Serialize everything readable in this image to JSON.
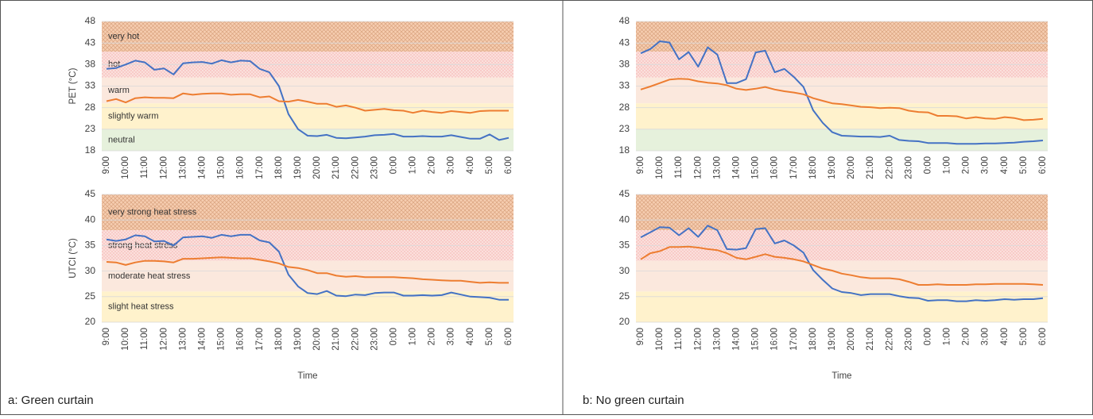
{
  "captions": [
    "a: Green curtain",
    "b: No green curtain"
  ],
  "chart_data": [
    {
      "type": "line",
      "y_label": "PET (°C)",
      "ylim": [
        18,
        48
      ],
      "yticks": [
        18,
        23,
        28,
        33,
        38,
        43,
        48
      ],
      "grid": true,
      "categories": [
        "9:00",
        null,
        "10:00",
        null,
        "11:00",
        null,
        "12:00",
        null,
        "13:00",
        null,
        "14:00",
        null,
        "15:00",
        null,
        "16:00",
        null,
        "17:00",
        null,
        "18:00",
        null,
        "19:00",
        null,
        "20:00",
        null,
        "21:00",
        null,
        "22:00",
        null,
        "23:00",
        null,
        "0:00",
        null,
        "1:00",
        null,
        "2:00",
        null,
        "3:00",
        null,
        "4:00",
        null,
        "5:00",
        null,
        "6:00"
      ],
      "bands": [
        {
          "label": "very hot",
          "from": 41,
          "to": 48,
          "color": "#f6cdb0",
          "pattern": "hatch"
        },
        {
          "label": "hot",
          "from": 35,
          "to": 41,
          "color": "#fbe0dc",
          "pattern": "dots"
        },
        {
          "label": "warm",
          "from": 29,
          "to": 35,
          "color": "#fbe8dd"
        },
        {
          "label": "slightly warm",
          "from": 23,
          "to": 29,
          "color": "#fff2cc"
        },
        {
          "label": "neutral",
          "from": 18,
          "to": 23,
          "color": "#e6f1dc"
        }
      ],
      "series": [
        {
          "color": "#4472c4",
          "values": [
            37,
            37.2,
            38,
            38.9,
            38.5,
            36.8,
            37.1,
            35.7,
            38.3,
            38.5,
            38.6,
            38.2,
            39.0,
            38.5,
            38.9,
            38.8,
            37.0,
            36.2,
            33.0,
            26.5,
            23.0,
            21.5,
            21.4,
            21.7,
            21.0,
            20.9,
            21.1,
            21.3,
            21.6,
            21.7,
            21.9,
            21.3,
            21.3,
            21.4,
            21.3,
            21.3,
            21.6,
            21.2,
            20.8,
            20.8,
            21.8,
            20.5,
            21.0
          ]
        },
        {
          "color": "#ed7d31",
          "values": [
            29.5,
            30.0,
            29.2,
            30.2,
            30.4,
            30.3,
            30.3,
            30.2,
            31.3,
            31.0,
            31.2,
            31.3,
            31.3,
            31.0,
            31.1,
            31.1,
            30.4,
            30.6,
            29.5,
            29.4,
            29.8,
            29.4,
            28.9,
            28.9,
            28.2,
            28.5,
            28.0,
            27.3,
            27.5,
            27.7,
            27.4,
            27.3,
            26.8,
            27.3,
            27.0,
            26.8,
            27.2,
            27.0,
            26.8,
            27.2,
            27.3,
            27.3,
            27.3
          ]
        }
      ]
    },
    {
      "type": "line",
      "y_label": "UTCI (°C)",
      "x_label": "Time",
      "ylim": [
        20,
        45
      ],
      "yticks": [
        20,
        25,
        30,
        35,
        40,
        45
      ],
      "grid": true,
      "categories": [
        "9:00",
        null,
        "10:00",
        null,
        "11:00",
        null,
        "12:00",
        null,
        "13:00",
        null,
        "14:00",
        null,
        "15:00",
        null,
        "16:00",
        null,
        "17:00",
        null,
        "18:00",
        null,
        "19:00",
        null,
        "20:00",
        null,
        "21:00",
        null,
        "22:00",
        null,
        "23:00",
        null,
        "0:00",
        null,
        "1:00",
        null,
        "2:00",
        null,
        "3:00",
        null,
        "4:00",
        null,
        "5:00",
        null,
        "6:00"
      ],
      "bands": [
        {
          "label": "very strong heat stress",
          "from": 38,
          "to": 45,
          "color": "#f6cdb0",
          "pattern": "hatch"
        },
        {
          "label": "strong heat stress",
          "from": 32,
          "to": 38,
          "color": "#fbe0dc",
          "pattern": "dots"
        },
        {
          "label": "moderate heat stress",
          "from": 26,
          "to": 32,
          "color": "#fbe8dd"
        },
        {
          "label": "slight heat stress",
          "from": 20,
          "to": 26,
          "color": "#fff2cc"
        }
      ],
      "series": [
        {
          "color": "#4472c4",
          "values": [
            36.2,
            35.9,
            36.2,
            37.0,
            36.8,
            35.8,
            35.9,
            35.0,
            36.6,
            36.7,
            36.8,
            36.5,
            37.1,
            36.8,
            37.1,
            37.1,
            36.0,
            35.6,
            33.8,
            29.3,
            27.0,
            25.7,
            25.5,
            26.1,
            25.2,
            25.1,
            25.4,
            25.3,
            25.7,
            25.8,
            25.8,
            25.2,
            25.2,
            25.3,
            25.2,
            25.3,
            25.8,
            25.4,
            25.0,
            24.9,
            24.8,
            24.4,
            24.4
          ]
        },
        {
          "color": "#ed7d31",
          "values": [
            31.8,
            31.7,
            31.2,
            31.7,
            32.0,
            32.0,
            31.9,
            31.7,
            32.4,
            32.4,
            32.5,
            32.6,
            32.7,
            32.6,
            32.5,
            32.5,
            32.2,
            31.9,
            31.5,
            30.8,
            30.6,
            30.2,
            29.6,
            29.6,
            29.1,
            28.9,
            29.0,
            28.8,
            28.8,
            28.8,
            28.8,
            28.7,
            28.6,
            28.4,
            28.3,
            28.2,
            28.1,
            28.1,
            27.9,
            27.7,
            27.8,
            27.7,
            27.7
          ]
        }
      ]
    },
    {
      "type": "line",
      "ylim": [
        18,
        48
      ],
      "yticks": [
        18,
        23,
        28,
        33,
        38,
        43,
        48
      ],
      "grid": true,
      "categories": [
        "9:00",
        null,
        "10:00",
        null,
        "11:00",
        null,
        "12:00",
        null,
        "13:00",
        null,
        "14:00",
        null,
        "15:00",
        null,
        "16:00",
        null,
        "17:00",
        null,
        "18:00",
        null,
        "19:00",
        null,
        "20:00",
        null,
        "21:00",
        null,
        "22:00",
        null,
        "23:00",
        null,
        "0:00",
        null,
        "1:00",
        null,
        "2:00",
        null,
        "3:00",
        null,
        "4:00",
        null,
        "5:00",
        null,
        "6:00"
      ],
      "bands": [
        {
          "from": 41,
          "to": 48,
          "color": "#f6cdb0",
          "pattern": "hatch"
        },
        {
          "from": 35,
          "to": 41,
          "color": "#fbe0dc",
          "pattern": "dots"
        },
        {
          "from": 29,
          "to": 35,
          "color": "#fbe8dd"
        },
        {
          "from": 23,
          "to": 29,
          "color": "#fff2cc"
        },
        {
          "from": 18,
          "to": 23,
          "color": "#e6f1dc"
        }
      ],
      "series": [
        {
          "color": "#4472c4",
          "values": [
            40.6,
            41.6,
            43.4,
            43.1,
            39.2,
            40.9,
            37.5,
            42.0,
            40.3,
            33.7,
            33.7,
            34.6,
            40.8,
            41.2,
            36.2,
            37.0,
            35.1,
            32.8,
            27.4,
            24.5,
            22.3,
            21.5,
            21.4,
            21.3,
            21.3,
            21.2,
            21.5,
            20.5,
            20.3,
            20.2,
            19.8,
            19.8,
            19.8,
            19.6,
            19.6,
            19.6,
            19.7,
            19.7,
            19.8,
            19.9,
            20.1,
            20.2,
            20.4
          ]
        },
        {
          "color": "#ed7d31",
          "values": [
            32.2,
            32.9,
            33.7,
            34.5,
            34.7,
            34.6,
            34.1,
            33.8,
            33.6,
            33.2,
            32.4,
            32.1,
            32.4,
            32.8,
            32.2,
            31.8,
            31.5,
            31.1,
            30.2,
            29.6,
            29.0,
            28.8,
            28.5,
            28.2,
            28.1,
            27.9,
            28.0,
            27.9,
            27.3,
            27.0,
            26.9,
            26.1,
            26.1,
            26.0,
            25.5,
            25.8,
            25.5,
            25.4,
            25.8,
            25.6,
            25.1,
            25.2,
            25.4
          ]
        }
      ]
    },
    {
      "type": "line",
      "x_label": "Time",
      "ylim": [
        20,
        45
      ],
      "yticks": [
        20,
        25,
        30,
        35,
        40,
        45
      ],
      "grid": true,
      "categories": [
        "9:00",
        null,
        "10:00",
        null,
        "11:00",
        null,
        "12:00",
        null,
        "13:00",
        null,
        "14:00",
        null,
        "15:00",
        null,
        "16:00",
        null,
        "17:00",
        null,
        "18:00",
        null,
        "19:00",
        null,
        "20:00",
        null,
        "21:00",
        null,
        "22:00",
        null,
        "23:00",
        null,
        "0:00",
        null,
        "1:00",
        null,
        "2:00",
        null,
        "3:00",
        null,
        "4:00",
        null,
        "5:00",
        null,
        "6:00"
      ],
      "bands": [
        {
          "from": 38,
          "to": 45,
          "color": "#f6cdb0",
          "pattern": "hatch"
        },
        {
          "from": 32,
          "to": 38,
          "color": "#fbe0dc",
          "pattern": "dots"
        },
        {
          "from": 26,
          "to": 32,
          "color": "#fbe8dd"
        },
        {
          "from": 20,
          "to": 26,
          "color": "#fff2cc"
        }
      ],
      "series": [
        {
          "color": "#4472c4",
          "values": [
            36.6,
            37.6,
            38.6,
            38.5,
            37.0,
            38.4,
            36.7,
            38.9,
            38.0,
            34.3,
            34.2,
            34.5,
            38.2,
            38.4,
            35.4,
            36.0,
            35.0,
            33.6,
            30.2,
            28.3,
            26.6,
            25.9,
            25.7,
            25.3,
            25.5,
            25.5,
            25.5,
            25.1,
            24.8,
            24.7,
            24.2,
            24.3,
            24.3,
            24.1,
            24.1,
            24.3,
            24.2,
            24.3,
            24.5,
            24.4,
            24.5,
            24.5,
            24.7
          ]
        },
        {
          "color": "#ed7d31",
          "values": [
            32.3,
            33.5,
            33.9,
            34.7,
            34.7,
            34.8,
            34.6,
            34.3,
            34.1,
            33.5,
            32.6,
            32.3,
            32.8,
            33.3,
            32.8,
            32.6,
            32.3,
            31.9,
            31.2,
            30.5,
            30.1,
            29.5,
            29.2,
            28.8,
            28.6,
            28.6,
            28.6,
            28.4,
            27.9,
            27.3,
            27.3,
            27.4,
            27.3,
            27.3,
            27.3,
            27.4,
            27.4,
            27.5,
            27.5,
            27.5,
            27.5,
            27.4,
            27.3
          ]
        }
      ]
    }
  ]
}
